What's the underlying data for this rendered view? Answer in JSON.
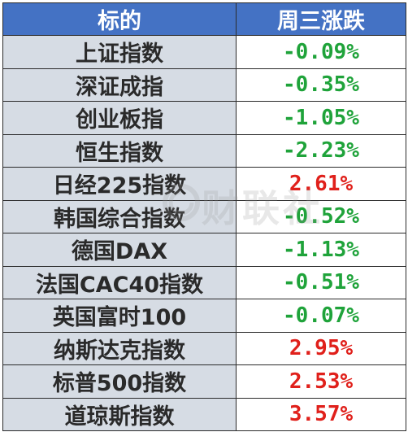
{
  "header": {
    "col_name": "标的",
    "col_change": "周三涨跌"
  },
  "colors": {
    "header_bg": "#4472c4",
    "name_bg": "#d6dce4",
    "down": "#1fa33a",
    "up": "#e0201b"
  },
  "rows": [
    {
      "name": "上证指数",
      "change": "-0.09%",
      "direction": "down"
    },
    {
      "name": "深证成指",
      "change": "-0.35%",
      "direction": "down"
    },
    {
      "name": "创业板指",
      "change": "-1.05%",
      "direction": "down"
    },
    {
      "name": "恒生指数",
      "change": "-2.23%",
      "direction": "down"
    },
    {
      "name": "日经225指数",
      "change": "2.61%",
      "direction": "up"
    },
    {
      "name": "韩国综合指数",
      "change": "-0.52%",
      "direction": "down"
    },
    {
      "name": "德国DAX",
      "change": "-1.13%",
      "direction": "down"
    },
    {
      "name": "法国CAC40指数",
      "change": "-0.51%",
      "direction": "down"
    },
    {
      "name": "英国富时100",
      "change": "-0.07%",
      "direction": "down"
    },
    {
      "name": "纳斯达克指数",
      "change": "2.95%",
      "direction": "up"
    },
    {
      "name": "标普500指数",
      "change": "2.53%",
      "direction": "up"
    },
    {
      "name": "道琼斯指数",
      "change": "3.57%",
      "direction": "up"
    }
  ],
  "watermark": {
    "text": "财联社",
    "icon": "cls-logo-icon"
  }
}
